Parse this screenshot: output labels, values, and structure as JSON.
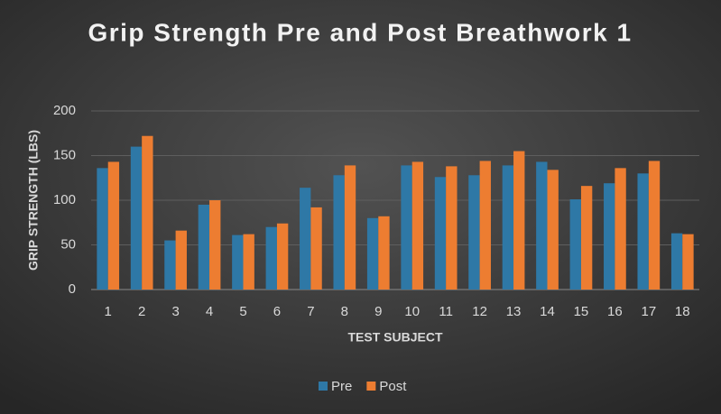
{
  "chart_data": {
    "type": "bar",
    "title": "Grip Strength Pre and Post Breathwork 1",
    "x_label": "TEST SUBJECT",
    "y_label": "GRIP STRENGTH (LBS)",
    "categories": [
      "1",
      "2",
      "3",
      "4",
      "5",
      "6",
      "7",
      "8",
      "9",
      "10",
      "11",
      "12",
      "13",
      "14",
      "15",
      "16",
      "17",
      "18"
    ],
    "series": [
      {
        "name": "Pre",
        "color": "#2e78a6",
        "values": [
          136,
          160,
          55,
          95,
          61,
          70,
          114,
          128,
          80,
          139,
          126,
          128,
          139,
          143,
          101,
          119,
          130,
          63
        ]
      },
      {
        "name": "Post",
        "color": "#ed7d31",
        "values": [
          143,
          172,
          66,
          100,
          62,
          74,
          92,
          139,
          82,
          143,
          138,
          144,
          155,
          134,
          116,
          136,
          144,
          62
        ]
      }
    ],
    "ylim": [
      0,
      200
    ],
    "yticks": [
      0,
      50,
      100,
      150,
      200
    ],
    "grid": true,
    "legend": "bottom"
  }
}
